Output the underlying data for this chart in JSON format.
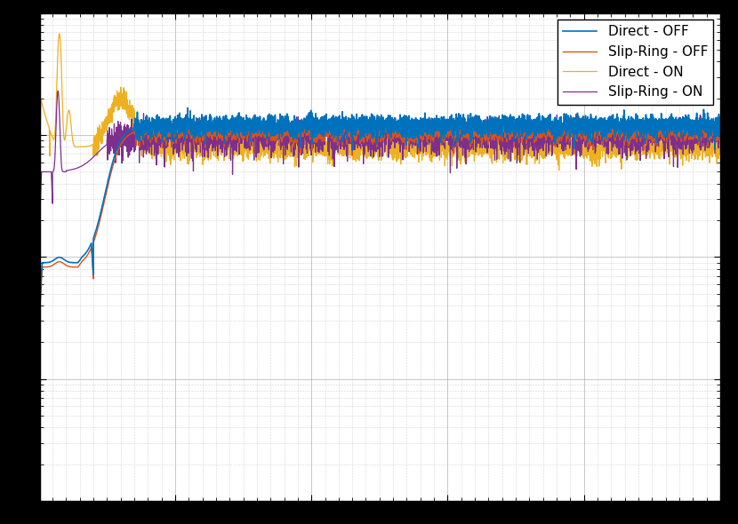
{
  "colors": {
    "direct_off": "#0072BD",
    "slipring_off": "#D95319",
    "direct_on": "#EDB120",
    "slipring_on": "#7E2F8E"
  },
  "legend_labels": [
    "Direct - OFF",
    "Slip-Ring - OFF",
    "Direct - ON",
    "Slip-Ring - ON"
  ],
  "background_color": "#FFFFFF",
  "grid_color": "#b0b0b0",
  "figsize": [
    8.3,
    5.9
  ],
  "dpi": 100
}
